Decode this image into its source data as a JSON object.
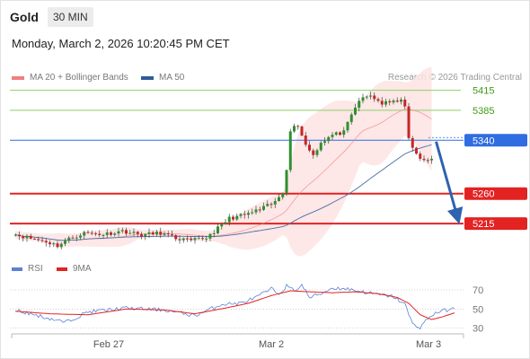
{
  "header": {
    "asset": "Gold",
    "timeframe": "30 MIN",
    "datetime": "Monday, March 2, 2026 10:20:45 PM CET"
  },
  "legend": {
    "bollinger_label": "MA 20 + Bollinger Bands",
    "ma50_label": "MA 50",
    "copyright": "Research © 2026 Trading Central",
    "rsi_label": "RSI",
    "rsi_ma_label": "9MA"
  },
  "colors": {
    "bollinger": "#f07e7e",
    "bollinger_fill": "#fde3e3",
    "ma50": "#4a6fa8",
    "resistance_line": "#8fcf66",
    "resistance_text": "#3f9b15",
    "pivot": "#2f6de1",
    "support": "#e32222",
    "candle_up": "#2f8f2f",
    "candle_down": "#c62626",
    "rsi": "#5b82d6",
    "rsi_ma": "#e32222",
    "arrow": "#2f62b0"
  },
  "chart_data": {
    "type": "candlestick",
    "x_ticks": [
      "Feb 27",
      "Mar 2",
      "Mar 3"
    ],
    "price_range": [
      5160,
      5440
    ],
    "levels": [
      {
        "label": "5415",
        "value": 5415,
        "kind": "resistance"
      },
      {
        "label": "5385",
        "value": 5385,
        "kind": "resistance"
      },
      {
        "label": "5340",
        "value": 5340,
        "kind": "pivot"
      },
      {
        "label": "5260",
        "value": 5260,
        "kind": "support"
      },
      {
        "label": "5215",
        "value": 5215,
        "kind": "support"
      }
    ],
    "forecast": {
      "from": 5338,
      "to": 5215
    },
    "price_bars": 110,
    "price_anchors": [
      [
        0,
        5200
      ],
      [
        5,
        5193
      ],
      [
        9,
        5188
      ],
      [
        12,
        5182
      ],
      [
        15,
        5192
      ],
      [
        19,
        5201
      ],
      [
        24,
        5199
      ],
      [
        29,
        5204
      ],
      [
        34,
        5198
      ],
      [
        39,
        5201
      ],
      [
        43,
        5193
      ],
      [
        47,
        5189
      ],
      [
        51,
        5194
      ],
      [
        54,
        5208
      ],
      [
        57,
        5223
      ],
      [
        61,
        5228
      ],
      [
        65,
        5236
      ],
      [
        69,
        5247
      ],
      [
        71,
        5262
      ],
      [
        72,
        5298
      ],
      [
        73,
        5356
      ],
      [
        75,
        5363
      ],
      [
        77,
        5333
      ],
      [
        79,
        5318
      ],
      [
        81,
        5337
      ],
      [
        84,
        5348
      ],
      [
        87,
        5352
      ],
      [
        89,
        5377
      ],
      [
        91,
        5400
      ],
      [
        94,
        5407
      ],
      [
        97,
        5395
      ],
      [
        100,
        5397
      ],
      [
        102,
        5403
      ],
      [
        103,
        5388
      ],
      [
        104,
        5342
      ],
      [
        106,
        5318
      ],
      [
        108,
        5308
      ],
      [
        110,
        5312
      ],
      [
        112,
        5322
      ],
      [
        114,
        5336
      ],
      [
        116,
        5339
      ]
    ],
    "rsi_levels": [
      70,
      50,
      30
    ],
    "rsi_range": [
      20,
      80
    ],
    "rsi_anchors": [
      [
        0,
        50
      ],
      [
        8,
        42
      ],
      [
        14,
        36
      ],
      [
        20,
        47
      ],
      [
        30,
        51
      ],
      [
        40,
        49
      ],
      [
        48,
        43
      ],
      [
        55,
        55
      ],
      [
        60,
        56
      ],
      [
        64,
        62
      ],
      [
        68,
        71
      ],
      [
        70,
        66
      ],
      [
        72,
        74
      ],
      [
        74,
        69
      ],
      [
        76,
        75
      ],
      [
        78,
        62
      ],
      [
        81,
        66
      ],
      [
        84,
        72
      ],
      [
        88,
        71
      ],
      [
        92,
        68
      ],
      [
        96,
        65
      ],
      [
        100,
        63
      ],
      [
        103,
        55
      ],
      [
        105,
        34
      ],
      [
        107,
        31
      ],
      [
        109,
        40
      ],
      [
        111,
        46
      ],
      [
        114,
        49
      ],
      [
        116,
        50
      ]
    ],
    "rsi_ma_anchors": [
      [
        0,
        48
      ],
      [
        10,
        45
      ],
      [
        20,
        44
      ],
      [
        30,
        50
      ],
      [
        40,
        49
      ],
      [
        48,
        45
      ],
      [
        56,
        51
      ],
      [
        62,
        56
      ],
      [
        68,
        64
      ],
      [
        73,
        69
      ],
      [
        78,
        68
      ],
      [
        84,
        67
      ],
      [
        90,
        68
      ],
      [
        96,
        66
      ],
      [
        101,
        62
      ],
      [
        104,
        56
      ],
      [
        107,
        44
      ],
      [
        110,
        39
      ],
      [
        113,
        42
      ],
      [
        116,
        46
      ]
    ]
  }
}
